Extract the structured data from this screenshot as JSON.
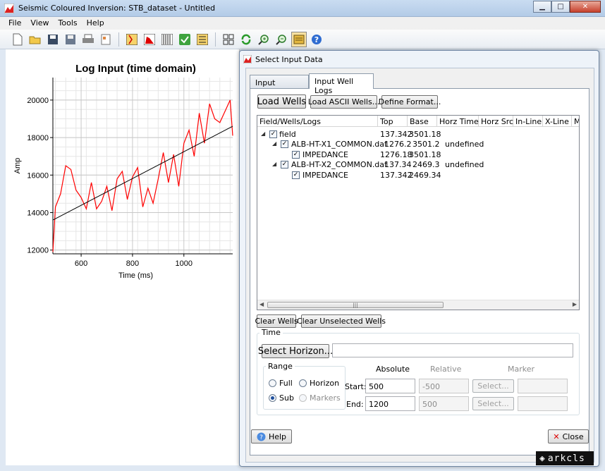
{
  "window": {
    "title": "Seismic Coloured Inversion: STB_dataset - Untitled"
  },
  "menu": [
    "File",
    "View",
    "Tools",
    "Help"
  ],
  "toolbar_icons": [
    "new-file-icon",
    "open-folder-icon",
    "save-icon",
    "save-as-icon",
    "print-icon",
    "report-icon",
    "seismic-wavelet-icon",
    "spectrum-icon",
    "traces-icon",
    "check-icon",
    "operator-icon",
    "grid-icon",
    "refresh-icon",
    "zoom-in-icon",
    "zoom-out-icon",
    "log-panel-icon",
    "help-icon"
  ],
  "chart_data": {
    "type": "line",
    "title": "Log Input (time domain)",
    "xlabel": "Time (ms)",
    "ylabel": "Amp",
    "xlim": [
      490,
      1190
    ],
    "ylim": [
      11800,
      21200
    ],
    "xticks": [
      600,
      800,
      1000
    ],
    "yticks": [
      12000,
      14000,
      16000,
      18000,
      20000
    ],
    "grid": true,
    "series": [
      {
        "color": "#ff0000",
        "x": [
          490,
          500,
          520,
          540,
          560,
          580,
          600,
          620,
          640,
          660,
          680,
          700,
          720,
          740,
          760,
          780,
          800,
          820,
          840,
          860,
          880,
          900,
          920,
          940,
          960,
          980,
          1000,
          1020,
          1040,
          1060,
          1080,
          1100,
          1120,
          1140,
          1160,
          1180,
          1190
        ],
        "y": [
          11900,
          14300,
          15000,
          16500,
          16300,
          15200,
          14800,
          14200,
          15600,
          14200,
          14600,
          15400,
          14100,
          15800,
          16200,
          14700,
          15900,
          16400,
          14300,
          15300,
          14500,
          15800,
          17200,
          15600,
          17100,
          15400,
          17700,
          18400,
          17000,
          19300,
          17700,
          19800,
          19000,
          18800,
          19400,
          20000,
          18100
        ]
      },
      {
        "color": "#000000",
        "x": [
          490,
          1190
        ],
        "y": [
          13600,
          18600
        ]
      }
    ]
  },
  "dialog": {
    "title": "Select Input Data",
    "tabs": [
      "Input Seismic",
      "Input Well Logs"
    ],
    "buttons": {
      "load_wells": "Load Wells",
      "load_ascii": "Load ASCII Wells...",
      "define_format": "Define Format...",
      "clear_wells": "Clear Wells",
      "clear_unselected": "Clear Unselected Wells",
      "select_horizon": "Select Horizon...",
      "select1": "Select...",
      "select2": "Select...",
      "help": "Help",
      "close": "Close"
    },
    "columns": [
      "Field/Wells/Logs",
      "Top",
      "Base",
      "Horz Time",
      "Horz Src",
      "In-Line",
      "X-Line",
      "M"
    ],
    "rows": [
      {
        "name": "field",
        "top": "137.342",
        "base": "3501.18",
        "horz_time": ""
      },
      {
        "name": "ALB-HT-X1_COMMON.dat",
        "top": "1276.2",
        "base": "3501.2",
        "horz_time": "undefined"
      },
      {
        "name": "IMPEDANCE",
        "top": "1276.18",
        "base": "3501.18",
        "horz_time": ""
      },
      {
        "name": "ALB-HT-X2_COMMON.dat",
        "top": "137.34",
        "base": "2469.3",
        "horz_time": "undefined"
      },
      {
        "name": "IMPEDANCE",
        "top": "137.342",
        "base": "2469.34",
        "horz_time": ""
      }
    ],
    "time": {
      "group_label": "Time",
      "horizon_value": "",
      "range_label": "Range",
      "range_options": [
        "Full",
        "Horizon",
        "Sub",
        "Markers"
      ],
      "range_selected": "Sub",
      "col_absolute": "Absolute",
      "col_relative": "Relative",
      "col_marker": "Marker",
      "start_label": "Start:",
      "end_label": "End:",
      "start_abs": "500",
      "end_abs": "1200",
      "start_rel": "-500",
      "end_rel": "500"
    }
  },
  "brand": "arkcls"
}
